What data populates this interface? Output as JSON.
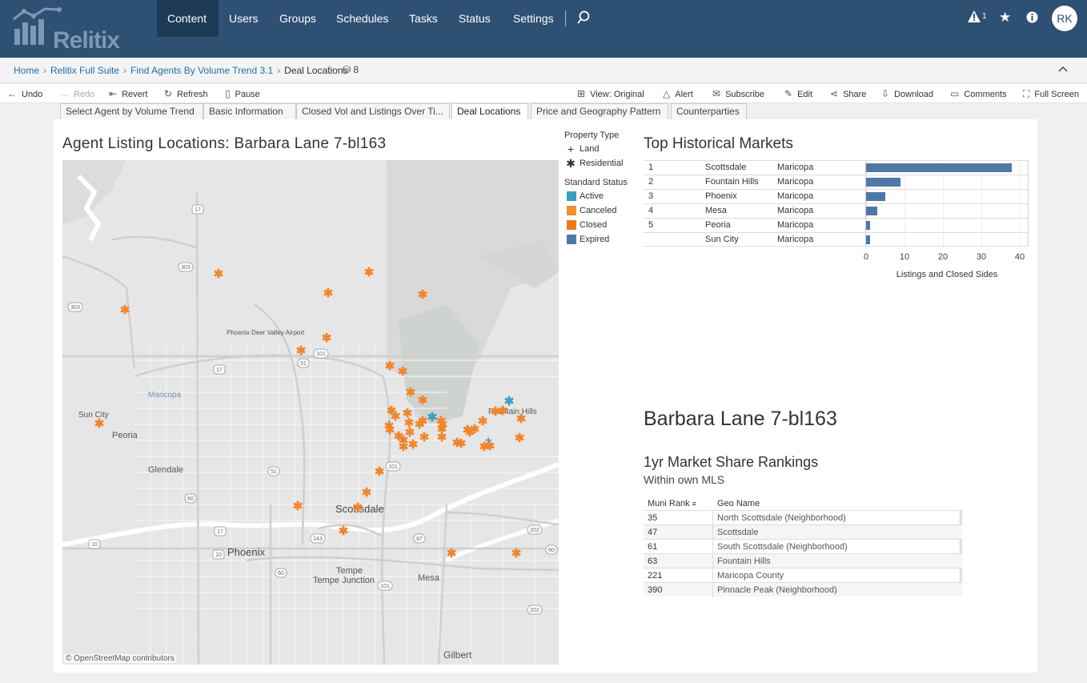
{
  "brand": {
    "logo_text": "Relitix"
  },
  "nav": {
    "items": [
      "Content",
      "Users",
      "Groups",
      "Schedules",
      "Tasks",
      "Status",
      "Settings"
    ],
    "active": "Content",
    "alert_count": "1",
    "user_initials": "RK"
  },
  "breadcrumb": {
    "home": "Home",
    "suite": "Relitix Full Suite",
    "workbook": "Find Agents By Volume Trend 3.1",
    "current": "Deal Locations",
    "views_count": "8"
  },
  "toolbar": {
    "undo": "Undo",
    "redo": "Redo",
    "revert": "Revert",
    "refresh": "Refresh",
    "pause": "Pause",
    "view": "View: Original",
    "alert": "Alert",
    "subscribe": "Subscribe",
    "edit": "Edit",
    "share": "Share",
    "download": "Download",
    "comments": "Comments",
    "fullscreen": "Full Screen"
  },
  "tabs": [
    "Select Agent by Volume Trend",
    "Basic Information",
    "Closed Vol and Listings Over Ti...",
    "Deal Locations",
    "Price and Geography Pattern",
    "Counterparties"
  ],
  "active_tab": "Deal Locations",
  "map": {
    "title": "Agent Listing Locations:  Barbara Lane 7-bl163",
    "attribution": "© OpenStreetMap contributors",
    "places": [
      "Phoenix",
      "Scottsdale",
      "Tempe",
      "Tempe Junction",
      "Mesa",
      "Glendale",
      "Peoria",
      "Sun City",
      "Gilbert",
      "Fountain Hills",
      "Maricopa",
      "Phoenix Deer Valley Airport"
    ],
    "route_shields": [
      "17",
      "303",
      "303",
      "101",
      "51",
      "17",
      "101",
      "51",
      "60",
      "17",
      "143",
      "202",
      "87",
      "101",
      "60",
      "10",
      "10",
      "60",
      "202"
    ]
  },
  "legend": {
    "property_type_title": "Property Type",
    "property_types": [
      {
        "label": "Land",
        "symbol": "+"
      },
      {
        "label": "Residential",
        "symbol": "✱"
      }
    ],
    "status_title": "Standard Status",
    "statuses": [
      {
        "label": "Active",
        "color": "#3a9fbf"
      },
      {
        "label": "Canceled",
        "color": "#f28e2b"
      },
      {
        "label": "Closed",
        "color": "#ef7a1a"
      },
      {
        "label": "Expired",
        "color": "#4e79a7"
      }
    ]
  },
  "top_markets": {
    "title": "Top Historical Markets",
    "rows": [
      {
        "rank": "1",
        "city": "Scottsdale",
        "county": "Maricopa"
      },
      {
        "rank": "2",
        "city": "Fountain Hills",
        "county": "Maricopa"
      },
      {
        "rank": "3",
        "city": "Phoenix",
        "county": "Maricopa"
      },
      {
        "rank": "4",
        "city": "Mesa",
        "county": "Maricopa"
      },
      {
        "rank": "5",
        "city": "Peoria",
        "county": "Maricopa"
      },
      {
        "rank": "",
        "city": "Sun City",
        "county": "Maricopa"
      }
    ]
  },
  "chart_data": {
    "type": "bar",
    "orientation": "horizontal",
    "title": "Top Historical Markets",
    "categories": [
      "Scottsdale",
      "Fountain Hills",
      "Phoenix",
      "Mesa",
      "Peoria",
      "Sun City"
    ],
    "values": [
      38,
      9,
      5,
      3,
      1,
      1
    ],
    "xlabel": "Listings and Closed Sides",
    "xlim": [
      0,
      40
    ],
    "ticks": [
      "0",
      "10",
      "20",
      "30",
      "40"
    ],
    "bar_color": "#4e79a7",
    "grid": true
  },
  "agent": {
    "name": "Barbara Lane 7-bl163",
    "rank_title": "1yr Market Share Rankings",
    "rank_subtitle": "Within own MLS"
  },
  "rankings": {
    "col1": "Muni Rank",
    "col2": "Geo Name",
    "rows": [
      {
        "rank": "35",
        "geo": "North Scottsdale (Neighborhood)"
      },
      {
        "rank": "47",
        "geo": "Scottsdale"
      },
      {
        "rank": "61",
        "geo": "South Scottsdale (Neighborhood)"
      },
      {
        "rank": "63",
        "geo": "Fountain Hills"
      },
      {
        "rank": "221",
        "geo": "Maricopa County"
      },
      {
        "rank": "390",
        "geo": "Pinnacle Peak (Neighborhood)"
      }
    ]
  }
}
